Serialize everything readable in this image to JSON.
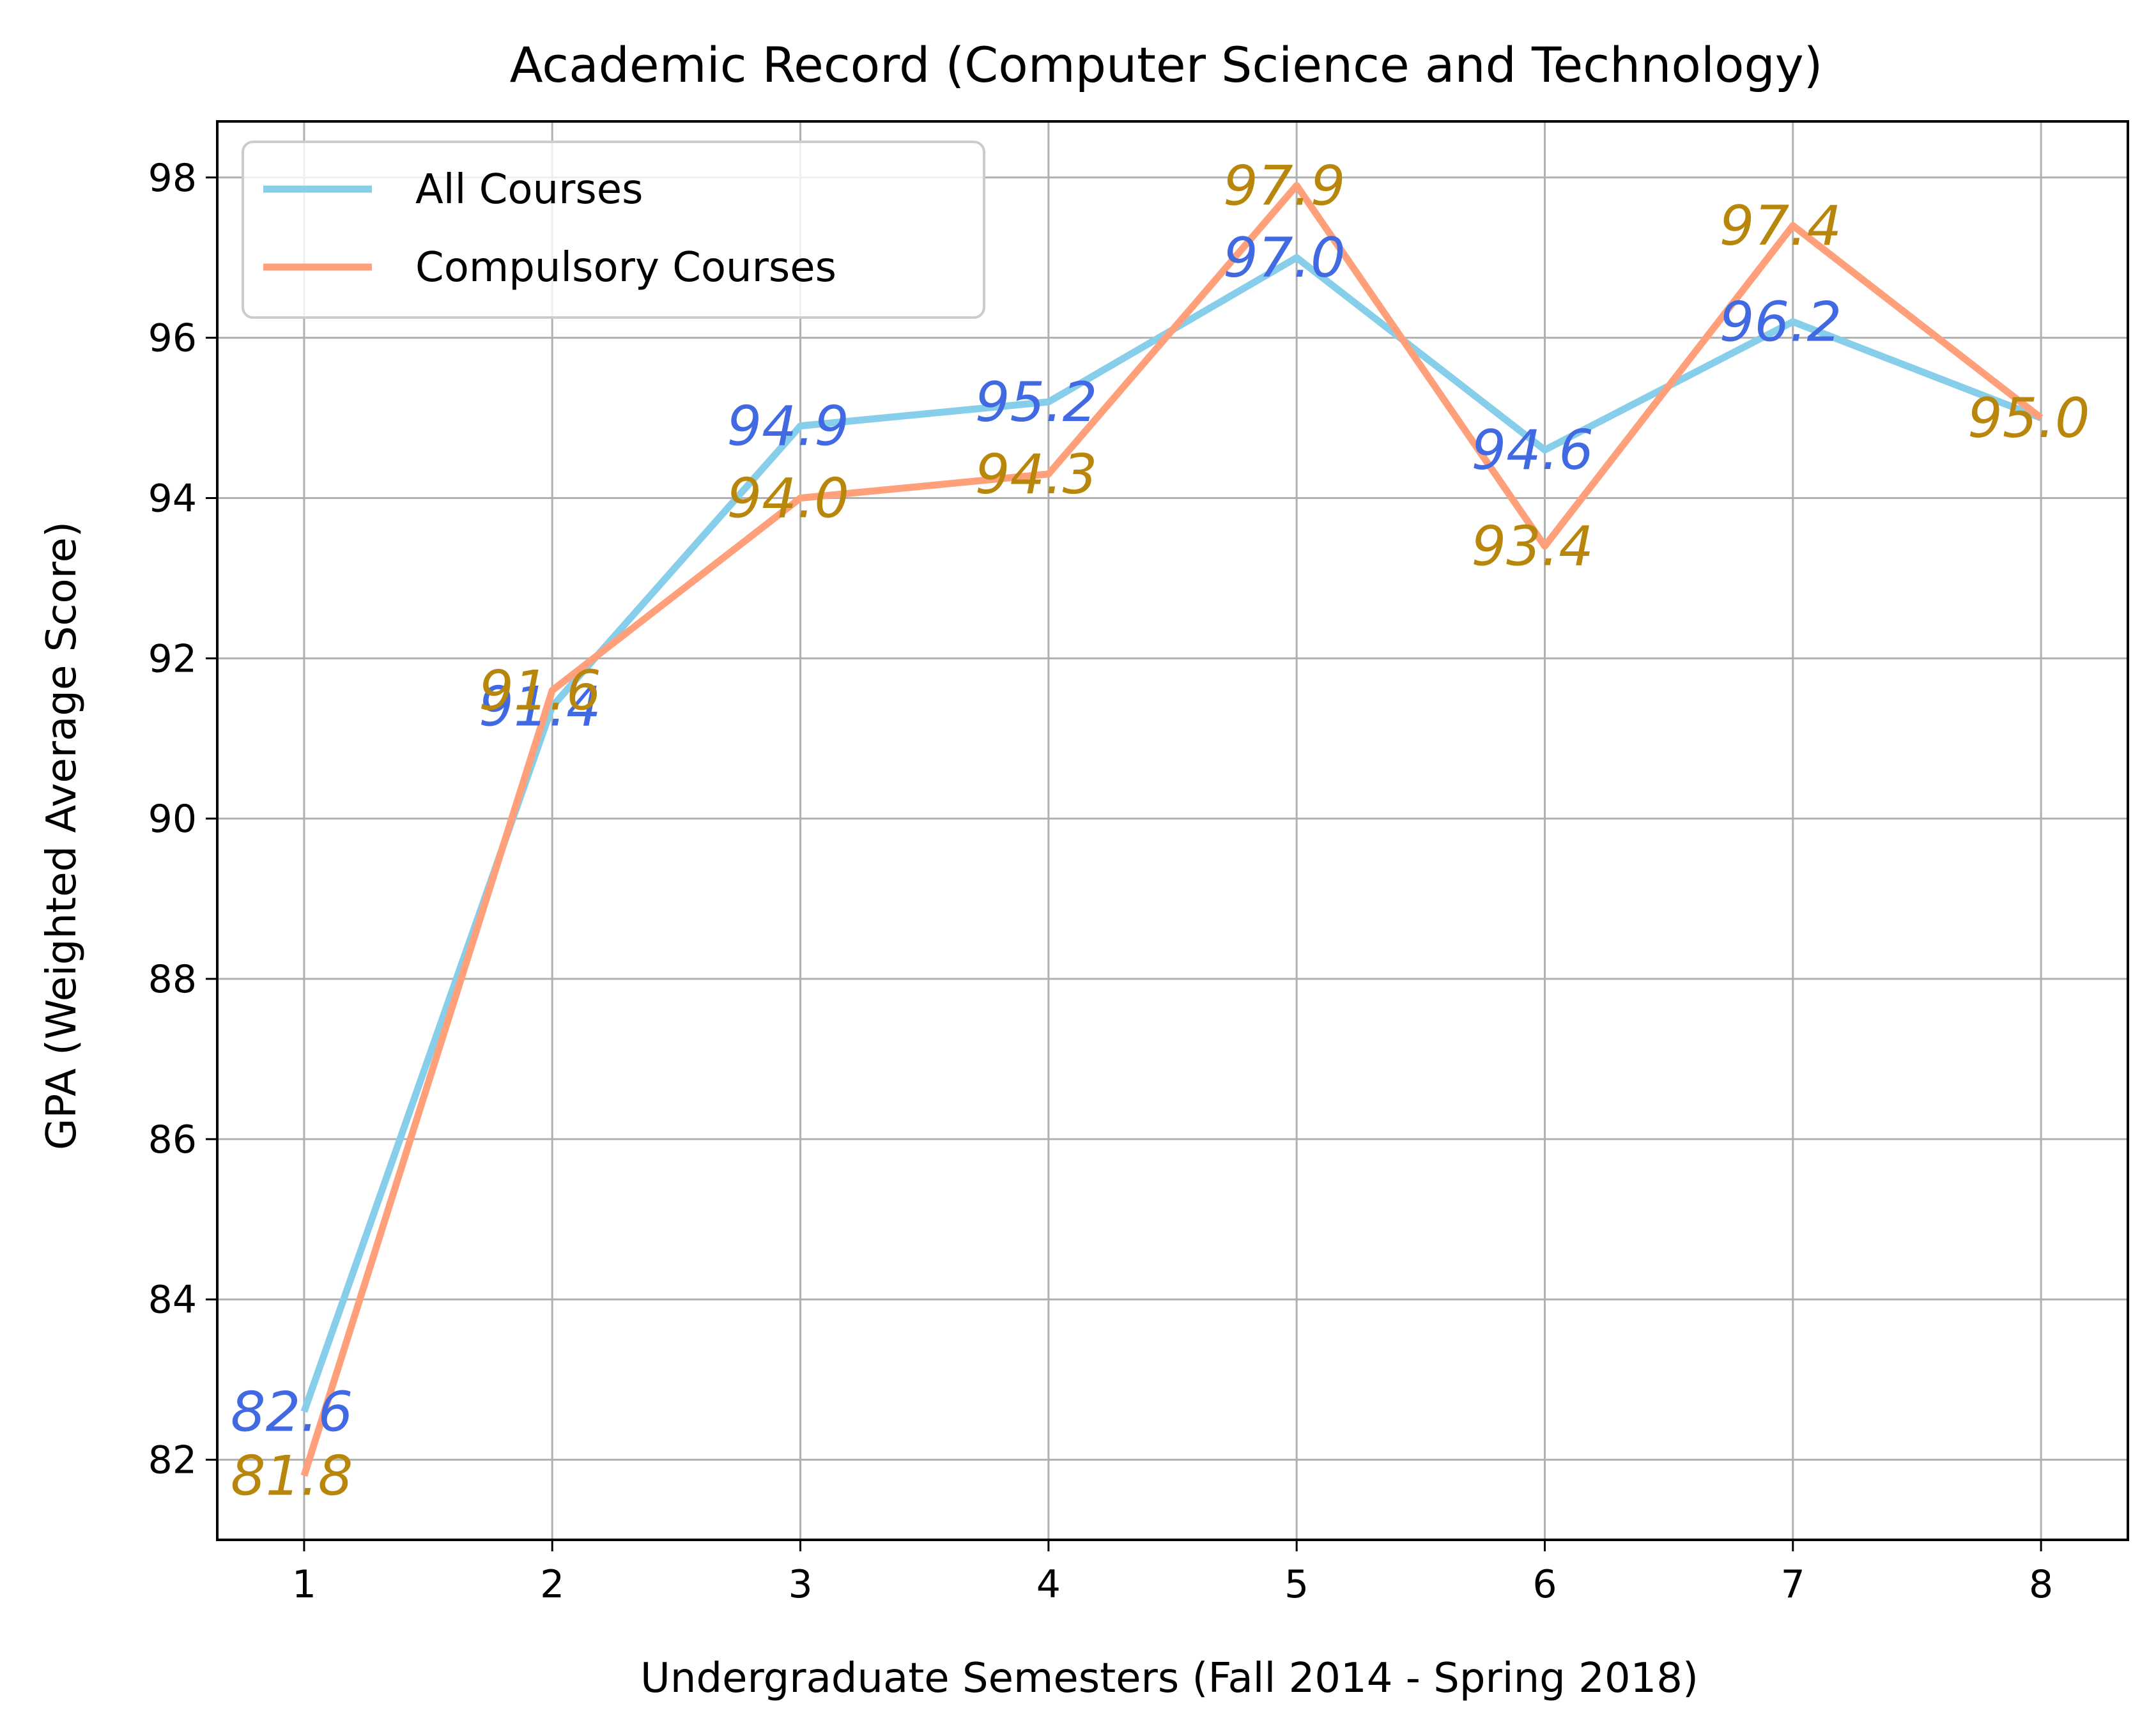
{
  "chart_data": {
    "type": "line",
    "title": "Academic Record (Computer Science and Technology)",
    "xlabel": "Undergraduate Semesters (Fall 2014 - Spring 2018)",
    "ylabel": "GPA (Weighted Average Score)",
    "x": [
      1,
      2,
      3,
      4,
      5,
      6,
      7,
      8
    ],
    "xlim": [
      0.65,
      8.35
    ],
    "ylim": [
      81.0,
      98.7
    ],
    "xticks": [
      "1",
      "2",
      "3",
      "4",
      "5",
      "6",
      "7",
      "8"
    ],
    "yticks": [
      82,
      84,
      86,
      88,
      90,
      92,
      94,
      96,
      98
    ],
    "grid": true,
    "legend_position": "upper-left",
    "series": [
      {
        "name": "All Courses",
        "color": "#87ceeb",
        "label_color": "#4169e1",
        "values": [
          82.6,
          91.4,
          94.9,
          95.2,
          97.0,
          94.6,
          96.2,
          95.0
        ],
        "labels": [
          "82.6",
          "91.4",
          "94.9",
          "95.2",
          "97.0",
          "94.6",
          "96.2",
          ""
        ]
      },
      {
        "name": "Compulsory Courses",
        "color": "#ffa07a",
        "label_color": "#b8860b",
        "values": [
          81.8,
          91.6,
          94.0,
          94.3,
          97.9,
          93.4,
          97.4,
          95.0
        ],
        "labels": [
          "81.8",
          "91.6",
          "94.0",
          "94.3",
          "97.9",
          "93.4",
          "97.4",
          "95.0"
        ]
      }
    ]
  }
}
